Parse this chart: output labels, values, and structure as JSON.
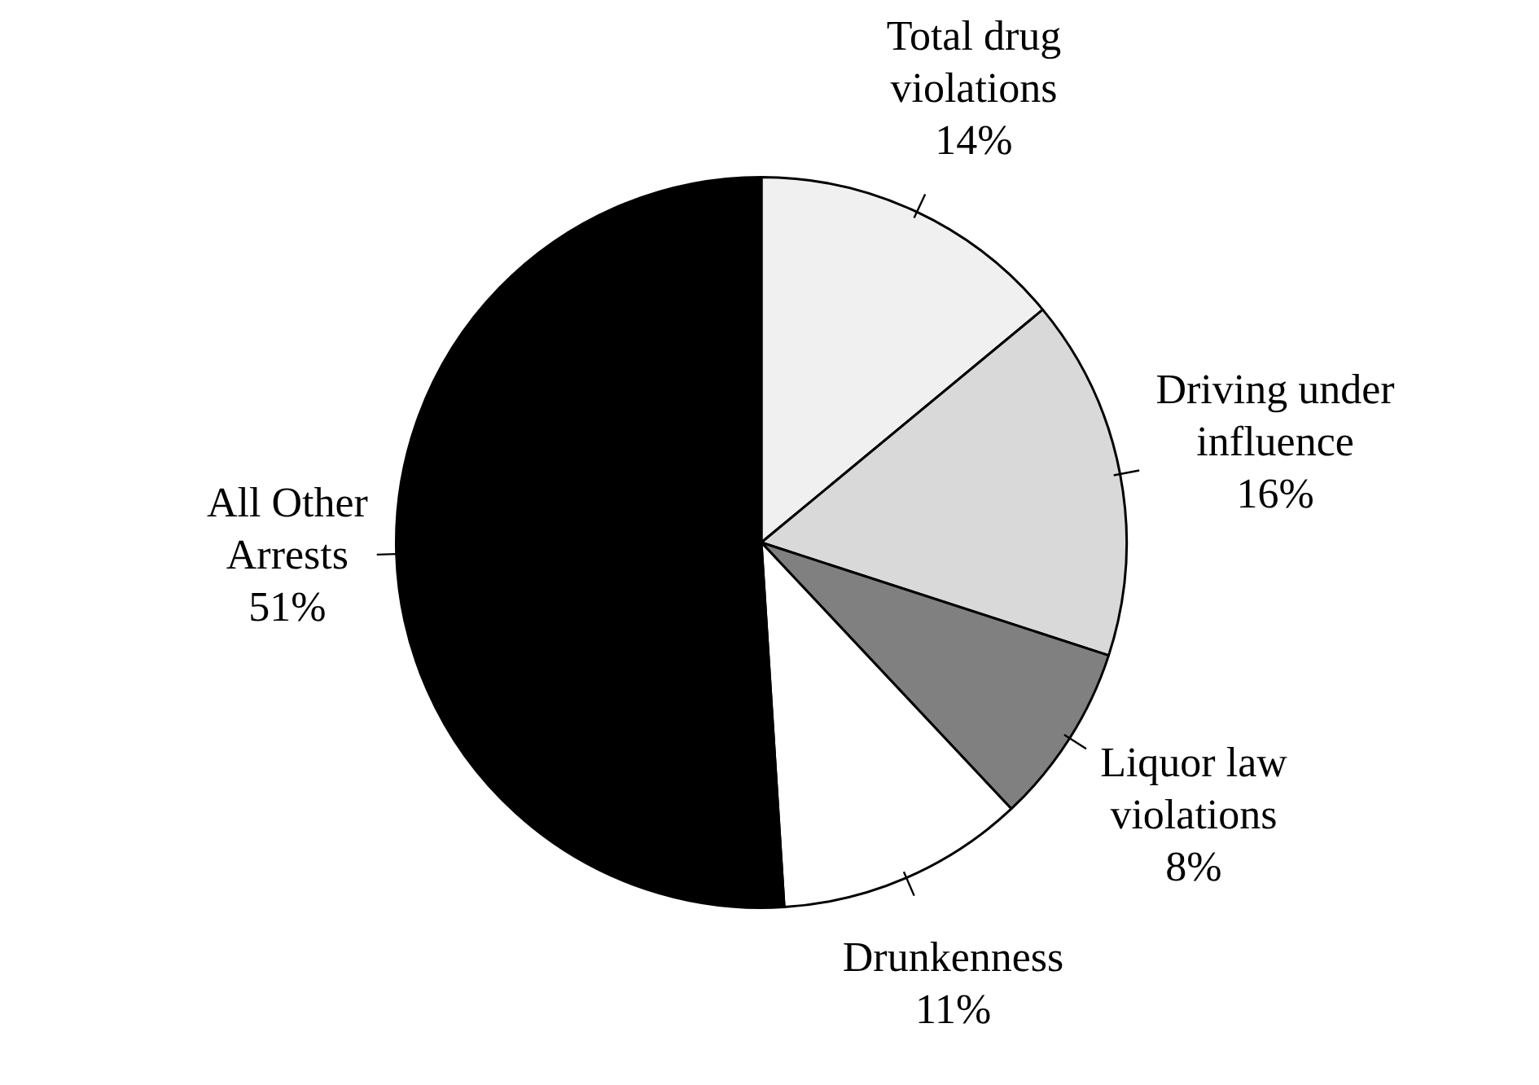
{
  "chart_data": {
    "type": "pie",
    "categories": [
      "Total drug violations",
      "Driving under influence",
      "Liquor law violations",
      "Drunkenness",
      "All Other Arrests"
    ],
    "values": [
      14,
      16,
      8,
      11,
      51
    ],
    "value_labels": [
      "14%",
      "16%",
      "8%",
      "11%",
      "51%"
    ],
    "colors": [
      "#f0f0f0",
      "#d9d9d9",
      "#808080",
      "#ffffff",
      "#000000"
    ],
    "legend": false
  }
}
